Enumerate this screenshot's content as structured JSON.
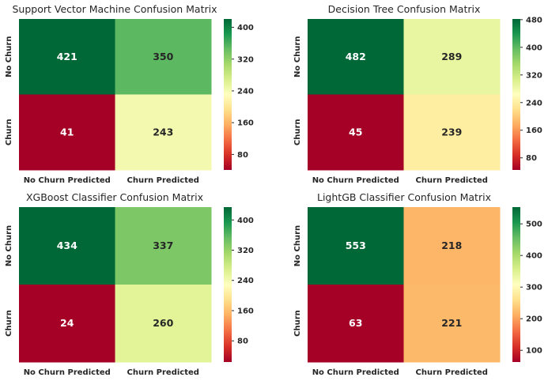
{
  "chart_data": [
    {
      "type": "heatmap",
      "title": "Support Vector Machine Confusion Matrix",
      "x_categories": [
        "No Churn Predicted",
        "Churn Predicted"
      ],
      "y_categories": [
        "No Churn",
        "Churn"
      ],
      "values": [
        [
          421,
          350
        ],
        [
          41,
          243
        ]
      ],
      "colormap": "RdYlGn",
      "colorbar_range": [
        41,
        421
      ],
      "colorbar_ticks": [
        "80",
        "160",
        "240",
        "320",
        "400"
      ]
    },
    {
      "type": "heatmap",
      "title": "Decision Tree Confusion Matrix",
      "x_categories": [
        "No Churn Predicted",
        "Churn Predicted"
      ],
      "y_categories": [
        "No Churn",
        "Churn"
      ],
      "values": [
        [
          482,
          289
        ],
        [
          45,
          239
        ]
      ],
      "colormap": "RdYlGn",
      "colorbar_range": [
        45,
        482
      ],
      "colorbar_ticks": [
        "80",
        "160",
        "240",
        "320",
        "400",
        "480"
      ]
    },
    {
      "type": "heatmap",
      "title": "XGBoost Classifier Confusion Matrix",
      "x_categories": [
        "No Churn Predicted",
        "Churn Predicted"
      ],
      "y_categories": [
        "No Churn",
        "Churn"
      ],
      "values": [
        [
          434,
          337
        ],
        [
          24,
          260
        ]
      ],
      "colormap": "RdYlGn",
      "colorbar_range": [
        24,
        434
      ],
      "colorbar_ticks": [
        "80",
        "160",
        "240",
        "320",
        "400"
      ]
    },
    {
      "type": "heatmap",
      "title": "LightGB Classifier Confusion Matrix",
      "x_categories": [
        "No Churn Predicted",
        "Churn Predicted"
      ],
      "y_categories": [
        "No Churn",
        "Churn"
      ],
      "values": [
        [
          553,
          218
        ],
        [
          63,
          221
        ]
      ],
      "colormap": "RdYlGn",
      "colorbar_range": [
        63,
        553
      ],
      "colorbar_ticks": [
        "100",
        "200",
        "300",
        "400",
        "500"
      ]
    }
  ]
}
